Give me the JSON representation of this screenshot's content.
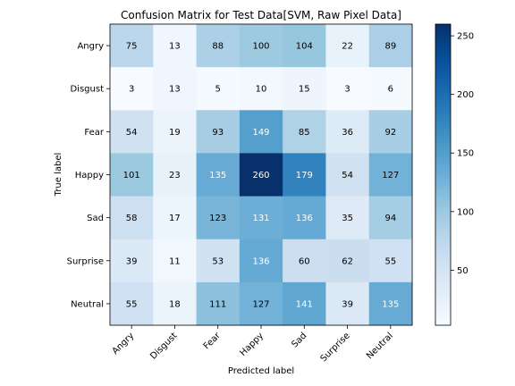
{
  "chart_data": {
    "type": "heatmap",
    "title": "Confusion Matrix for Test Data[SVM, Raw Pixel Data]",
    "xlabel": "Predicted label",
    "ylabel": "True label",
    "x_categories": [
      "Angry",
      "Disgust",
      "Fear",
      "Happy",
      "Sad",
      "Surprise",
      "Neutral"
    ],
    "y_categories": [
      "Angry",
      "Disgust",
      "Fear",
      "Happy",
      "Sad",
      "Surprise",
      "Neutral"
    ],
    "values": [
      [
        75,
        13,
        88,
        100,
        104,
        22,
        89
      ],
      [
        3,
        13,
        5,
        10,
        15,
        3,
        6
      ],
      [
        54,
        19,
        93,
        149,
        85,
        36,
        92
      ],
      [
        101,
        23,
        135,
        260,
        179,
        54,
        127
      ],
      [
        58,
        17,
        123,
        131,
        136,
        35,
        94
      ],
      [
        39,
        11,
        53,
        136,
        60,
        62,
        55
      ],
      [
        55,
        18,
        111,
        127,
        141,
        39,
        135
      ]
    ],
    "colormap": "Blues",
    "colorbar": {
      "range": [
        3,
        260
      ],
      "ticks": [
        "50",
        "100",
        "150",
        "200",
        "250"
      ],
      "tick_values": [
        50,
        100,
        150,
        200,
        250
      ]
    },
    "text_color_threshold": 130,
    "text_dark_color": "#000000",
    "text_light_color": "#ffffff",
    "grid": false
  }
}
